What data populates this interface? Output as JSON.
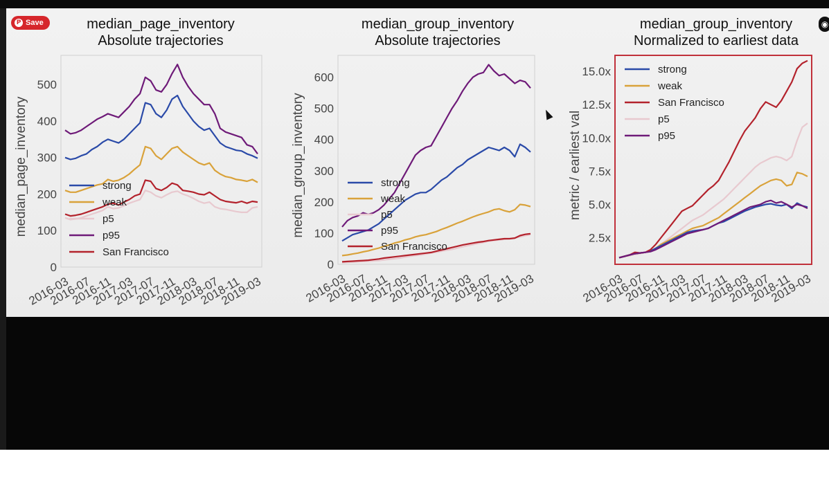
{
  "save_button": {
    "label": "Save",
    "icon": "pinterest-icon"
  },
  "colors": {
    "strong": "#2a4aa8",
    "weak": "#d9a23a",
    "p5": "#e8c9cf",
    "p95": "#6e1a78",
    "San Francisco": "#b3222c"
  },
  "chart_data": [
    {
      "type": "line",
      "title": [
        "median_page_inventory",
        "Absolute trajectories"
      ],
      "ylabel": "median_page_inventory",
      "xlabel": "",
      "ylim": [
        0,
        580
      ],
      "yticks": [
        0,
        100,
        200,
        300,
        400,
        500
      ],
      "ytick_labels": [
        "0",
        "100",
        "200",
        "300",
        "400",
        "500"
      ],
      "xticks": [
        "2016-03",
        "2016-07",
        "2016-11",
        "2017-03",
        "2017-07",
        "2017-11",
        "2018-03",
        "2018-07",
        "2018-11",
        "2019-03"
      ],
      "x": [
        "2016-03",
        "2016-04",
        "2016-05",
        "2016-06",
        "2016-07",
        "2016-08",
        "2016-09",
        "2016-10",
        "2016-11",
        "2016-12",
        "2017-01",
        "2017-02",
        "2017-03",
        "2017-04",
        "2017-05",
        "2017-06",
        "2017-07",
        "2017-08",
        "2017-09",
        "2017-10",
        "2017-11",
        "2017-12",
        "2018-01",
        "2018-02",
        "2018-03",
        "2018-04",
        "2018-05",
        "2018-06",
        "2018-07",
        "2018-08",
        "2018-09",
        "2018-10",
        "2018-11",
        "2018-12",
        "2019-01",
        "2019-02",
        "2019-03"
      ],
      "legend_loc": "lower-left",
      "grid": false,
      "series": [
        {
          "name": "strong",
          "values": [
            300,
            295,
            298,
            305,
            310,
            322,
            330,
            342,
            350,
            345,
            340,
            350,
            365,
            380,
            395,
            450,
            445,
            420,
            410,
            430,
            460,
            470,
            440,
            420,
            400,
            385,
            375,
            380,
            360,
            340,
            330,
            325,
            320,
            318,
            310,
            305,
            298
          ]
        },
        {
          "name": "weak",
          "values": [
            210,
            205,
            205,
            210,
            215,
            220,
            225,
            228,
            240,
            235,
            238,
            245,
            255,
            268,
            280,
            330,
            325,
            305,
            295,
            310,
            325,
            330,
            315,
            305,
            295,
            285,
            280,
            285,
            265,
            255,
            248,
            245,
            240,
            238,
            235,
            240,
            232
          ]
        },
        {
          "name": "p5",
          "values": [
            135,
            130,
            132,
            135,
            140,
            145,
            150,
            155,
            165,
            160,
            162,
            168,
            175,
            180,
            185,
            210,
            205,
            195,
            190,
            198,
            205,
            208,
            200,
            195,
            188,
            180,
            175,
            178,
            165,
            160,
            158,
            155,
            152,
            150,
            150,
            162,
            165
          ]
        },
        {
          "name": "p95",
          "values": [
            375,
            365,
            368,
            375,
            385,
            395,
            405,
            412,
            420,
            415,
            410,
            425,
            440,
            460,
            475,
            520,
            510,
            485,
            480,
            500,
            530,
            555,
            520,
            495,
            475,
            460,
            445,
            445,
            420,
            380,
            370,
            365,
            360,
            355,
            335,
            330,
            310
          ]
        },
        {
          "name": "San Francisco",
          "values": [
            145,
            140,
            142,
            145,
            150,
            155,
            160,
            165,
            172,
            175,
            170,
            178,
            185,
            195,
            200,
            238,
            235,
            215,
            210,
            218,
            230,
            225,
            210,
            208,
            205,
            200,
            198,
            205,
            195,
            185,
            180,
            178,
            176,
            180,
            175,
            180,
            178
          ]
        }
      ]
    },
    {
      "type": "line",
      "title": [
        "median_group_inventory",
        "Absolute trajectories"
      ],
      "ylabel": "median_group_inventory",
      "xlabel": "",
      "ylim": [
        0,
        670
      ],
      "yticks": [
        0,
        100,
        200,
        300,
        400,
        500,
        600
      ],
      "ytick_labels": [
        "0",
        "100",
        "200",
        "300",
        "400",
        "500",
        "600"
      ],
      "xticks": [
        "2016-03",
        "2016-07",
        "2016-11",
        "2017-03",
        "2017-07",
        "2017-11",
        "2018-03",
        "2018-07",
        "2018-11",
        "2019-03"
      ],
      "x": [
        "2016-03",
        "2016-04",
        "2016-05",
        "2016-06",
        "2016-07",
        "2016-08",
        "2016-09",
        "2016-10",
        "2016-11",
        "2016-12",
        "2017-01",
        "2017-02",
        "2017-03",
        "2017-04",
        "2017-05",
        "2017-06",
        "2017-07",
        "2017-08",
        "2017-09",
        "2017-10",
        "2017-11",
        "2017-12",
        "2018-01",
        "2018-02",
        "2018-03",
        "2018-04",
        "2018-05",
        "2018-06",
        "2018-07",
        "2018-08",
        "2018-09",
        "2018-10",
        "2018-11",
        "2018-12",
        "2019-01",
        "2019-02",
        "2019-03"
      ],
      "legend_loc": "lower-left",
      "grid": false,
      "series": [
        {
          "name": "strong",
          "values": [
            75,
            85,
            95,
            100,
            105,
            110,
            120,
            130,
            145,
            160,
            175,
            190,
            205,
            215,
            225,
            230,
            230,
            240,
            255,
            270,
            280,
            295,
            310,
            320,
            335,
            345,
            355,
            365,
            375,
            370,
            365,
            375,
            365,
            345,
            385,
            375,
            360
          ]
        },
        {
          "name": "weak",
          "values": [
            28,
            30,
            33,
            36,
            40,
            43,
            48,
            52,
            58,
            62,
            68,
            72,
            78,
            82,
            88,
            92,
            95,
            100,
            105,
            112,
            118,
            125,
            132,
            138,
            145,
            152,
            158,
            163,
            168,
            175,
            178,
            172,
            168,
            175,
            192,
            190,
            185
          ]
        },
        {
          "name": "p5",
          "values": [
            5,
            6,
            7,
            8,
            9,
            10,
            11,
            12,
            14,
            16,
            18,
            20,
            23,
            26,
            28,
            30,
            33,
            36,
            39,
            42,
            45,
            48,
            52,
            56,
            60,
            63,
            67,
            70,
            74,
            76,
            78,
            80,
            82,
            84,
            88,
            92,
            95
          ]
        },
        {
          "name": "p95",
          "values": [
            120,
            140,
            150,
            155,
            165,
            160,
            165,
            175,
            190,
            210,
            230,
            260,
            290,
            320,
            350,
            365,
            375,
            380,
            410,
            440,
            470,
            500,
            525,
            555,
            580,
            600,
            610,
            615,
            640,
            620,
            605,
            610,
            595,
            580,
            590,
            585,
            565
          ]
        },
        {
          "name": "San Francisco",
          "values": [
            8,
            9,
            10,
            11,
            12,
            13,
            15,
            17,
            20,
            22,
            24,
            26,
            28,
            30,
            32,
            34,
            36,
            38,
            42,
            46,
            50,
            54,
            58,
            62,
            65,
            68,
            71,
            73,
            76,
            78,
            80,
            82,
            82,
            84,
            92,
            96,
            98
          ]
        }
      ]
    },
    {
      "type": "line",
      "title": [
        "median_group_inventory",
        "Normalized to earliest data"
      ],
      "ylabel": "metric / earliest val",
      "xlabel": "",
      "ylim": [
        0.5,
        16.2
      ],
      "yticks": [
        2.5,
        5.0,
        7.5,
        10.0,
        12.5,
        15.0
      ],
      "ytick_labels": [
        "2.5x",
        "5.0x",
        "7.5x",
        "10.0x",
        "12.5x",
        "15.0x"
      ],
      "xticks": [
        "2016-03",
        "2016-07",
        "2016-11",
        "2017-03",
        "2017-07",
        "2017-11",
        "2018-03",
        "2018-07",
        "2018-11",
        "2019-03"
      ],
      "x": [
        "2016-03",
        "2016-04",
        "2016-05",
        "2016-06",
        "2016-07",
        "2016-08",
        "2016-09",
        "2016-10",
        "2016-11",
        "2016-12",
        "2017-01",
        "2017-02",
        "2017-03",
        "2017-04",
        "2017-05",
        "2017-06",
        "2017-07",
        "2017-08",
        "2017-09",
        "2017-10",
        "2017-11",
        "2017-12",
        "2018-01",
        "2018-02",
        "2018-03",
        "2018-04",
        "2018-05",
        "2018-06",
        "2018-07",
        "2018-08",
        "2018-09",
        "2018-10",
        "2018-11",
        "2018-12",
        "2019-01",
        "2019-02",
        "2019-03"
      ],
      "legend_loc": "upper-left",
      "grid": false,
      "series": [
        {
          "name": "strong",
          "values": [
            1.0,
            1.1,
            1.2,
            1.3,
            1.35,
            1.4,
            1.5,
            1.7,
            1.9,
            2.1,
            2.3,
            2.5,
            2.7,
            2.9,
            3.0,
            3.05,
            3.1,
            3.2,
            3.4,
            3.6,
            3.7,
            3.9,
            4.1,
            4.3,
            4.5,
            4.65,
            4.8,
            4.9,
            5.0,
            5.05,
            4.95,
            4.9,
            5.0,
            4.7,
            5.1,
            4.9,
            4.8
          ]
        },
        {
          "name": "weak",
          "values": [
            1.0,
            1.1,
            1.2,
            1.3,
            1.35,
            1.4,
            1.5,
            1.7,
            2.0,
            2.2,
            2.4,
            2.6,
            2.8,
            3.0,
            3.2,
            3.3,
            3.4,
            3.6,
            3.8,
            4.0,
            4.3,
            4.6,
            4.9,
            5.2,
            5.5,
            5.8,
            6.1,
            6.4,
            6.6,
            6.8,
            6.9,
            6.8,
            6.4,
            6.5,
            7.4,
            7.3,
            7.1
          ]
        },
        {
          "name": "p5",
          "values": [
            1.0,
            1.1,
            1.15,
            1.25,
            1.3,
            1.4,
            1.5,
            1.7,
            2.0,
            2.3,
            2.6,
            2.9,
            3.2,
            3.5,
            3.8,
            4.0,
            4.2,
            4.5,
            4.8,
            5.1,
            5.4,
            5.8,
            6.2,
            6.6,
            7.0,
            7.4,
            7.8,
            8.1,
            8.3,
            8.5,
            8.6,
            8.5,
            8.3,
            8.6,
            9.8,
            10.8,
            11.1
          ]
        },
        {
          "name": "p95",
          "values": [
            1.0,
            1.1,
            1.2,
            1.3,
            1.35,
            1.4,
            1.45,
            1.6,
            1.8,
            2.0,
            2.2,
            2.4,
            2.6,
            2.8,
            2.9,
            3.0,
            3.1,
            3.2,
            3.4,
            3.6,
            3.8,
            4.0,
            4.2,
            4.4,
            4.6,
            4.8,
            4.9,
            5.0,
            5.2,
            5.3,
            5.1,
            5.2,
            5.0,
            4.8,
            5.0,
            4.9,
            4.7
          ]
        },
        {
          "name": "San Francisco",
          "values": [
            1.0,
            1.1,
            1.2,
            1.4,
            1.35,
            1.4,
            1.6,
            2.0,
            2.5,
            3.0,
            3.5,
            4.0,
            4.5,
            4.7,
            4.9,
            5.3,
            5.7,
            6.1,
            6.4,
            6.8,
            7.5,
            8.2,
            9.0,
            9.8,
            10.5,
            11.0,
            11.5,
            12.2,
            12.7,
            12.5,
            12.3,
            12.8,
            13.5,
            14.2,
            15.2,
            15.6,
            15.8
          ]
        }
      ]
    }
  ]
}
